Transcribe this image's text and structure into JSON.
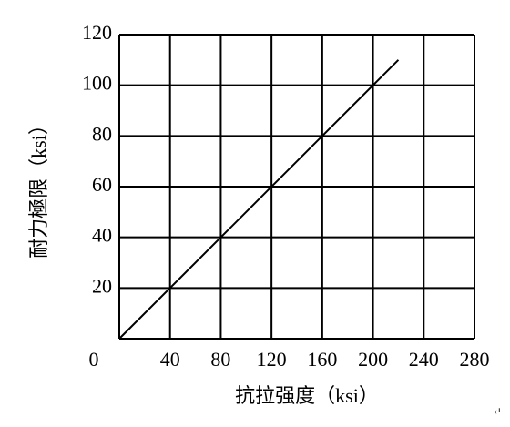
{
  "chart_data": {
    "type": "line",
    "x_label": "抗拉强度（ksi）",
    "y_label": "耐力極限（ksi）",
    "annotation": "↵",
    "series": [
      {
        "color": "#000000",
        "x": [
          0,
          220
        ],
        "values": [
          0,
          110
        ]
      }
    ],
    "xlim": [
      0,
      280
    ],
    "xticks": [
      0,
      40,
      80,
      120,
      160,
      200,
      240,
      280
    ],
    "ylim": [
      0,
      120
    ],
    "yticks": [
      0,
      20,
      40,
      60,
      80,
      100,
      120
    ],
    "grid": true
  }
}
